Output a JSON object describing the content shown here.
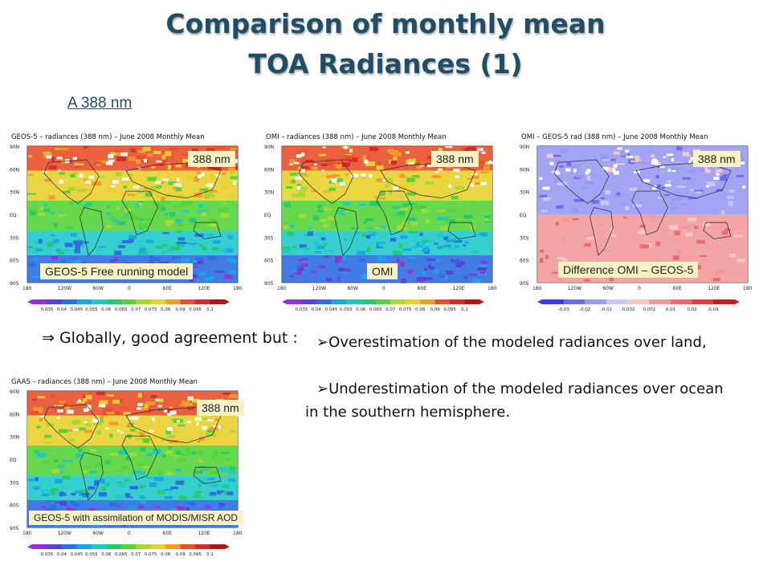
{
  "title_line1": "Comparison of monthly mean",
  "title_line2": "TOA Radiances (1)",
  "subtitle": "A 388 nm",
  "maps": [
    {
      "header": "GEOS-5 – radiances (388 nm) – June 2008 Monthly Mean",
      "wavelength": "388 nm",
      "caption": "GEOS-5 Free running model",
      "colorbar": [
        "0.035",
        "0.04",
        "0.045",
        "0.055",
        "0.06",
        "0.065",
        "0.07",
        "0.075",
        "0.08",
        "0.09",
        "0.095",
        "0.1"
      ]
    },
    {
      "header": "OMI – radiances (388 nm) – June 2008 Monthly Mean",
      "wavelength": "388 nm",
      "caption": "OMI",
      "colorbar": [
        "0.035",
        "0.04",
        "0.045",
        "0.055",
        "0.06",
        "0.065",
        "0.07",
        "0.075",
        "0.08",
        "0.09",
        "0.095",
        "0.1"
      ]
    },
    {
      "header": "OMI – GEOS-5 rad (388 nm) – June 2008 Monthly Mean",
      "wavelength": "388 nm",
      "caption": "Difference OMI – GEOS-5",
      "colorbar": [
        "-0.03",
        "-0.02",
        "-0.01",
        "-0.002",
        "0.002",
        "0.01",
        "0.02",
        "0.03"
      ]
    },
    {
      "header": "GAAS – radiances (388 nm) – June 2008 Monthly Mean",
      "wavelength": "388 nm",
      "caption": "GEOS-5 with assimilation of MODIS/MISR AOD",
      "colorbar": [
        "0.035",
        "0.04",
        "0.045",
        "0.055",
        "0.06",
        "0.065",
        "0.07",
        "0.075",
        "0.08",
        "0.09",
        "0.095",
        "0.1"
      ]
    }
  ],
  "lat_labels": [
    "90N",
    "60N",
    "30N",
    "EQ",
    "30S",
    "60S",
    "90S"
  ],
  "lon_labels": [
    "180",
    "120W",
    "60W",
    "0",
    "60E",
    "120E",
    "180"
  ],
  "statement": "⇒ Globally, good agreement but :",
  "bullet1": "➢Overestimation of the modeled radiances over land,",
  "bullet2_line1": "➢Underestimation of the modeled radiances over ocean",
  "bullet2_line2": "in the southern hemisphere."
}
